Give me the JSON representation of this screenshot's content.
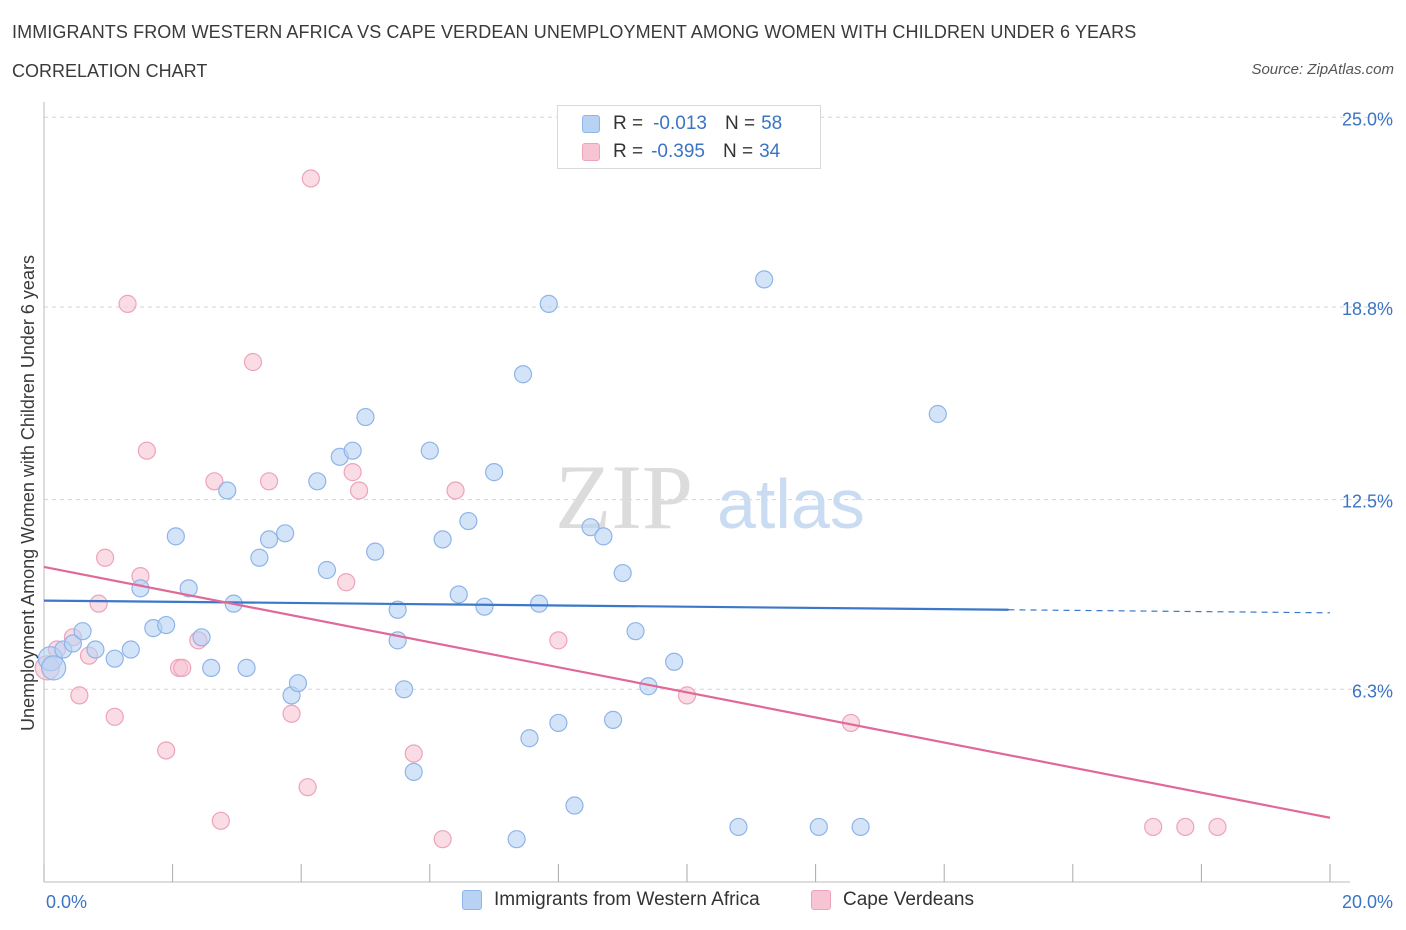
{
  "title": "IMMIGRANTS FROM WESTERN AFRICA VS CAPE VERDEAN UNEMPLOYMENT AMONG WOMEN WITH CHILDREN UNDER 6 YEARS",
  "subtitle": "CORRELATION CHART",
  "source": "Source: ZipAtlas.com",
  "watermark": {
    "zip": "ZIP",
    "atlas": "atlas"
  },
  "colors": {
    "blue_fill": "#b8d2f3",
    "blue_stroke": "#8fb4e8",
    "blue_line": "#3b78c9",
    "pink_fill": "#f7c4d3",
    "pink_stroke": "#eda3bb",
    "pink_line": "#e0699a",
    "tick_label": "#3b74c4",
    "grid": "#d5d5d5"
  },
  "legend": {
    "rows": [
      {
        "r_label": "R =",
        "r_value": "-0.013",
        "n_label": "N =",
        "n_value": "58",
        "color": "blue"
      },
      {
        "r_label": "R =",
        "r_value": "-0.395",
        "n_label": "N =",
        "n_value": "34",
        "color": "pink"
      }
    ]
  },
  "bottom_legend": [
    "Immigrants from Western Africa",
    "Cape Verdeans"
  ],
  "chart_data": {
    "type": "scatter",
    "xlabel": "",
    "ylabel": "Unemployment Among Women with Children Under 6 years",
    "xlim": [
      0,
      20
    ],
    "ylim": [
      0,
      25.5
    ],
    "x_tick_labels": [
      {
        "value": 0,
        "label": "0.0%"
      },
      {
        "value": 20,
        "label": "20.0%"
      }
    ],
    "y_tick_labels": [
      {
        "value": 6.3,
        "label": "6.3%"
      },
      {
        "value": 12.5,
        "label": "12.5%"
      },
      {
        "value": 18.8,
        "label": "18.8%"
      },
      {
        "value": 25.0,
        "label": "25.0%"
      }
    ],
    "grid": "horizontal dashed",
    "legend_position": "top-center",
    "series": [
      {
        "name": "Immigrants from Western Africa",
        "color": "blue",
        "trend": {
          "x": [
            0,
            15
          ],
          "y": [
            9.2,
            8.9
          ],
          "dashed_extension_to": [
            20,
            8.8
          ]
        },
        "points": [
          [
            0.1,
            7.3
          ],
          [
            0.15,
            7.0
          ],
          [
            0.3,
            7.6
          ],
          [
            0.45,
            7.8
          ],
          [
            0.6,
            8.2
          ],
          [
            0.8,
            7.6
          ],
          [
            1.1,
            7.3
          ],
          [
            1.35,
            7.6
          ],
          [
            1.5,
            9.6
          ],
          [
            1.7,
            8.3
          ],
          [
            1.9,
            8.4
          ],
          [
            2.05,
            11.3
          ],
          [
            2.25,
            9.6
          ],
          [
            2.45,
            8.0
          ],
          [
            2.6,
            7.0
          ],
          [
            2.85,
            12.8
          ],
          [
            2.95,
            9.1
          ],
          [
            3.15,
            7.0
          ],
          [
            3.35,
            10.6
          ],
          [
            3.5,
            11.2
          ],
          [
            3.75,
            11.4
          ],
          [
            3.85,
            6.1
          ],
          [
            3.95,
            6.5
          ],
          [
            4.25,
            13.1
          ],
          [
            4.4,
            10.2
          ],
          [
            4.6,
            13.9
          ],
          [
            4.8,
            14.1
          ],
          [
            5.0,
            15.2
          ],
          [
            5.15,
            10.8
          ],
          [
            5.5,
            7.9
          ],
          [
            5.5,
            8.9
          ],
          [
            5.6,
            6.3
          ],
          [
            5.75,
            3.6
          ],
          [
            6.0,
            14.1
          ],
          [
            6.2,
            11.2
          ],
          [
            6.45,
            9.4
          ],
          [
            6.6,
            11.8
          ],
          [
            6.85,
            9.0
          ],
          [
            7.0,
            13.4
          ],
          [
            7.35,
            1.4
          ],
          [
            7.45,
            16.6
          ],
          [
            7.55,
            4.7
          ],
          [
            7.7,
            9.1
          ],
          [
            7.85,
            18.9
          ],
          [
            8.0,
            5.2
          ],
          [
            8.25,
            2.5
          ],
          [
            8.5,
            11.6
          ],
          [
            8.7,
            11.3
          ],
          [
            8.85,
            5.3
          ],
          [
            9.0,
            10.1
          ],
          [
            9.2,
            8.2
          ],
          [
            9.4,
            6.4
          ],
          [
            9.8,
            7.2
          ],
          [
            10.8,
            1.8
          ],
          [
            11.2,
            19.7
          ],
          [
            12.05,
            1.8
          ],
          [
            12.7,
            1.8
          ],
          [
            13.9,
            15.3
          ]
        ]
      },
      {
        "name": "Cape Verdeans",
        "color": "pink",
        "trend": {
          "x": [
            0,
            20
          ],
          "y": [
            10.3,
            2.1
          ]
        },
        "points": [
          [
            0.05,
            7.0
          ],
          [
            0.2,
            7.6
          ],
          [
            0.45,
            8.0
          ],
          [
            0.55,
            6.1
          ],
          [
            0.7,
            7.4
          ],
          [
            0.85,
            9.1
          ],
          [
            0.95,
            10.6
          ],
          [
            1.1,
            5.4
          ],
          [
            1.3,
            18.9
          ],
          [
            1.5,
            10.0
          ],
          [
            1.6,
            14.1
          ],
          [
            1.9,
            4.3
          ],
          [
            2.1,
            7.0
          ],
          [
            2.15,
            7.0
          ],
          [
            2.4,
            7.9
          ],
          [
            2.65,
            13.1
          ],
          [
            2.75,
            2.0
          ],
          [
            3.25,
            17.0
          ],
          [
            3.5,
            13.1
          ],
          [
            3.85,
            5.5
          ],
          [
            4.1,
            3.1
          ],
          [
            4.15,
            23.0
          ],
          [
            4.7,
            9.8
          ],
          [
            4.8,
            13.4
          ],
          [
            4.9,
            12.8
          ],
          [
            5.75,
            4.2
          ],
          [
            6.2,
            1.4
          ],
          [
            6.4,
            12.8
          ],
          [
            8.0,
            7.9
          ],
          [
            10.0,
            6.1
          ],
          [
            12.55,
            5.2
          ],
          [
            17.25,
            1.8
          ],
          [
            17.75,
            1.8
          ],
          [
            18.25,
            1.8
          ]
        ]
      }
    ]
  }
}
